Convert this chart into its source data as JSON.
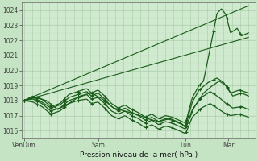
{
  "title": "Pression niveau de la mer( hPa )",
  "bg_color": "#c4e4c4",
  "plot_bg_color": "#d0ead0",
  "grid_color": "#a8cca8",
  "line_color": "#1a5c1a",
  "ylim": [
    1015.5,
    1024.5
  ],
  "yticks": [
    1016,
    1017,
    1018,
    1019,
    1020,
    1021,
    1022,
    1023,
    1024
  ],
  "xtick_labels": [
    "VenDim",
    "Sam",
    "Lun",
    "Mar"
  ],
  "xtick_positions": [
    0.0,
    0.33,
    0.72,
    0.91
  ],
  "xlim": [
    -0.01,
    1.03
  ]
}
